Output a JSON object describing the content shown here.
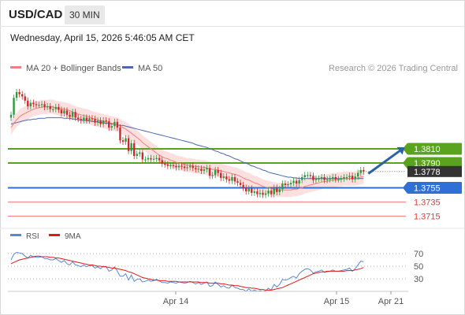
{
  "header": {
    "symbol": "USD/CAD",
    "timeframe": "30 MIN",
    "datetime": "Wednesday, April 15, 2026 5:46:05 AM CET"
  },
  "legend": {
    "ma20_label": "MA 20 + Bollinger Bands",
    "ma50_label": "MA 50",
    "credit": "Research © 2026 Trading Central"
  },
  "colors": {
    "up_candle": "#2e9a3f",
    "down_candle": "#d02828",
    "resistance": "#5aa31e",
    "pivot": "#2f6fd6",
    "support": "#f28b8b",
    "ma20": "#f08080",
    "ma50": "#4a69b0",
    "band_fill": "#fbd9d9",
    "rsi": "#5b86d6",
    "rsi_ma": "#e01818",
    "arrow": "#2d62a8",
    "current_price_box": "#333333"
  },
  "chart_data": [
    {
      "type": "candlestick",
      "title": "USD/CAD",
      "x_ticks": [
        "Apr 14",
        "Apr 15",
        "Apr 21"
      ],
      "price_levels": [
        {
          "value": 1.381,
          "label": "1.3810",
          "kind": "resistance"
        },
        {
          "value": 1.379,
          "label": "1.3790",
          "kind": "resistance"
        },
        {
          "value": 1.3755,
          "label": "1.3755",
          "kind": "pivot"
        },
        {
          "value": 1.3735,
          "label": "1.3735",
          "kind": "support"
        },
        {
          "value": 1.3715,
          "label": "1.3715",
          "kind": "support"
        }
      ],
      "current_price": {
        "value": 1.3778,
        "label": "1.3778"
      },
      "ylim": [
        1.37,
        1.3913
      ],
      "close": [
        1.3858,
        1.3882,
        1.389,
        1.3887,
        1.3884,
        1.3878,
        1.387,
        1.3875,
        1.3873,
        1.3872,
        1.3872,
        1.3873,
        1.3869,
        1.387,
        1.3866,
        1.3866,
        1.3869,
        1.3865,
        1.386,
        1.3864,
        1.3858,
        1.3855,
        1.3862,
        1.3854,
        1.3852,
        1.385,
        1.3854,
        1.385,
        1.3853,
        1.3852,
        1.3847,
        1.385,
        1.3845,
        1.385,
        1.3849,
        1.384,
        1.3842,
        1.3848,
        1.384,
        1.3822,
        1.382,
        1.3825,
        1.3807,
        1.3818,
        1.38,
        1.3803,
        1.3805,
        1.3795,
        1.3795,
        1.3797,
        1.3795,
        1.3796,
        1.3797,
        1.3794,
        1.3789,
        1.3788,
        1.3786,
        1.3787,
        1.3786,
        1.3784,
        1.3786,
        1.3785,
        1.3783,
        1.3784,
        1.3786,
        1.3783,
        1.3781,
        1.3782,
        1.3779,
        1.3781,
        1.3783,
        1.3772,
        1.3773,
        1.378,
        1.3776,
        1.3769,
        1.3771,
        1.3767,
        1.3765,
        1.377,
        1.3764,
        1.3762,
        1.3759,
        1.3755,
        1.375,
        1.3754,
        1.3748,
        1.375,
        1.3746,
        1.3748,
        1.3745,
        1.3747,
        1.3751,
        1.3746,
        1.3755,
        1.3749,
        1.3753,
        1.3761,
        1.3759,
        1.376,
        1.3762,
        1.3765,
        1.3761,
        1.3766,
        1.377,
        1.3773,
        1.3773,
        1.3772,
        1.3766,
        1.3768,
        1.3768,
        1.377,
        1.3766,
        1.3767,
        1.3768,
        1.377,
        1.3767,
        1.3767,
        1.3768,
        1.377,
        1.377,
        1.3772,
        1.3767,
        1.3771,
        1.3776,
        1.378,
        1.3778
      ],
      "ma20": [
        1.384,
        1.3846,
        1.3851,
        1.3855,
        1.3858,
        1.386,
        1.3862,
        1.3864,
        1.3866,
        1.3867,
        1.3868,
        1.3869,
        1.3869,
        1.3869,
        1.387,
        1.3869,
        1.3868,
        1.3867,
        1.3866,
        1.3866,
        1.3865,
        1.3864,
        1.3862,
        1.386,
        1.3859,
        1.3858,
        1.3857,
        1.3856,
        1.3855,
        1.3853,
        1.3852,
        1.3851,
        1.385,
        1.3849,
        1.3848,
        1.3847,
        1.3846,
        1.3845,
        1.3844,
        1.3842,
        1.384,
        1.3838,
        1.3835,
        1.3832,
        1.3829,
        1.3826,
        1.3823,
        1.3819,
        1.3816,
        1.3813,
        1.381,
        1.3807,
        1.3804,
        1.3801,
        1.3799,
        1.3797,
        1.3796,
        1.3794,
        1.3793,
        1.3791,
        1.379,
        1.3789,
        1.3788,
        1.3787,
        1.3787,
        1.3786,
        1.3785,
        1.3785,
        1.3784,
        1.3784,
        1.3783,
        1.3782,
        1.3781,
        1.3781,
        1.378,
        1.3779,
        1.3778,
        1.3777,
        1.3776,
        1.3775,
        1.3774,
        1.3773,
        1.3771,
        1.3769,
        1.3767,
        1.3766,
        1.3764,
        1.3762,
        1.3761,
        1.3759,
        1.3757,
        1.3756,
        1.3755,
        1.3754,
        1.3753,
        1.3752,
        1.3752,
        1.3752,
        1.3752,
        1.3752,
        1.3752,
        1.3753,
        1.3753,
        1.3754,
        1.3755,
        1.3757,
        1.3758,
        1.3759,
        1.376,
        1.3761,
        1.3762,
        1.3763,
        1.3764,
        1.3764,
        1.3765,
        1.3766,
        1.3766,
        1.3767,
        1.3767,
        1.3768,
        1.3768,
        1.3768,
        1.3768,
        1.3768,
        1.3769,
        1.377,
        1.3771
      ],
      "ma50": [
        1.3845,
        1.3846,
        1.3847,
        1.3848,
        1.3849,
        1.385,
        1.3851,
        1.3851,
        1.3852,
        1.3852,
        1.3853,
        1.3853,
        1.3853,
        1.3854,
        1.3854,
        1.3854,
        1.3854,
        1.3854,
        1.3854,
        1.3853,
        1.3853,
        1.3853,
        1.3852,
        1.3852,
        1.3851,
        1.3851,
        1.385,
        1.385,
        1.3849,
        1.3849,
        1.3848,
        1.3848,
        1.3847,
        1.3847,
        1.3846,
        1.3846,
        1.3845,
        1.3845,
        1.3844,
        1.3843,
        1.3843,
        1.3842,
        1.3841,
        1.384,
        1.3839,
        1.3838,
        1.3837,
        1.3836,
        1.3835,
        1.3834,
        1.3833,
        1.3832,
        1.3831,
        1.383,
        1.3829,
        1.3828,
        1.3827,
        1.3826,
        1.3825,
        1.3824,
        1.3823,
        1.3822,
        1.3821,
        1.382,
        1.3819,
        1.3818,
        1.3816,
        1.3815,
        1.3814,
        1.3813,
        1.3812,
        1.381,
        1.3809,
        1.3807,
        1.3806,
        1.3804,
        1.3803,
        1.3801,
        1.38,
        1.3798,
        1.3796,
        1.3795,
        1.3793,
        1.3791,
        1.379,
        1.3788,
        1.3786,
        1.3785,
        1.3783,
        1.3782,
        1.378,
        1.3779,
        1.3777,
        1.3776,
        1.3775,
        1.3774,
        1.3773,
        1.3772,
        1.3771,
        1.377,
        1.377,
        1.3769,
        1.3769,
        1.3768,
        1.3768,
        1.3768,
        1.3768,
        1.3768,
        1.3768,
        1.3768,
        1.3768,
        1.3768,
        1.3768,
        1.3768,
        1.3768,
        1.3768,
        1.3768,
        1.3768,
        1.3768,
        1.3768,
        1.3768,
        1.3768,
        1.3768,
        1.3768,
        1.3768,
        1.3768,
        1.3768
      ],
      "bb_width": 0.001
    },
    {
      "type": "line",
      "title": "RSI",
      "legend": [
        "RSI",
        "9MA"
      ],
      "yticks": [
        30,
        50,
        70
      ],
      "ylim": [
        10,
        90
      ],
      "series": [
        {
          "name": "RSI",
          "values": [
            60,
            69,
            72,
            71,
            70,
            66,
            63,
            67,
            65,
            64,
            64,
            65,
            62,
            62,
            60,
            60,
            62,
            59,
            56,
            59,
            54,
            52,
            57,
            52,
            51,
            49,
            52,
            49,
            51,
            51,
            47,
            49,
            46,
            50,
            49,
            42,
            44,
            49,
            42,
            34,
            34,
            38,
            28,
            36,
            26,
            29,
            30,
            25,
            26,
            28,
            26,
            27,
            29,
            27,
            24,
            24,
            23,
            25,
            24,
            23,
            25,
            24,
            23,
            24,
            26,
            24,
            22,
            24,
            21,
            23,
            25,
            18,
            19,
            25,
            21,
            17,
            19,
            16,
            15,
            20,
            16,
            15,
            13,
            13,
            10,
            14,
            10,
            12,
            10,
            11,
            10,
            11,
            15,
            12,
            21,
            17,
            21,
            29,
            28,
            29,
            32,
            34,
            31,
            38,
            42,
            45,
            46,
            44,
            39,
            41,
            42,
            44,
            40,
            41,
            42,
            44,
            42,
            42,
            43,
            44,
            45,
            47,
            42,
            46,
            52,
            58,
            57
          ]
        },
        {
          "name": "9MA",
          "values": [
            54,
            56,
            58,
            60,
            61,
            62,
            63,
            64,
            65,
            66,
            66,
            65,
            65,
            65,
            64,
            64,
            63,
            63,
            62,
            61,
            60,
            59,
            58,
            57,
            56,
            55,
            54,
            53,
            52,
            52,
            51,
            50,
            50,
            49,
            49,
            48,
            47,
            47,
            46,
            45,
            44,
            43,
            41,
            40,
            38,
            36,
            34,
            32,
            31,
            30,
            29,
            28,
            28,
            27,
            27,
            27,
            26,
            26,
            26,
            26,
            25,
            25,
            25,
            25,
            25,
            25,
            25,
            25,
            24,
            24,
            24,
            23,
            23,
            23,
            23,
            22,
            22,
            21,
            20,
            20,
            19,
            19,
            18,
            17,
            16,
            16,
            15,
            15,
            14,
            13,
            13,
            12,
            12,
            12,
            13,
            14,
            15,
            16,
            18,
            20,
            22,
            24,
            26,
            28,
            30,
            32,
            34,
            36,
            38,
            39,
            40,
            41,
            41,
            42,
            42,
            42,
            42,
            42,
            42,
            42,
            43,
            43,
            43,
            44,
            45,
            46,
            48
          ]
        }
      ]
    }
  ]
}
